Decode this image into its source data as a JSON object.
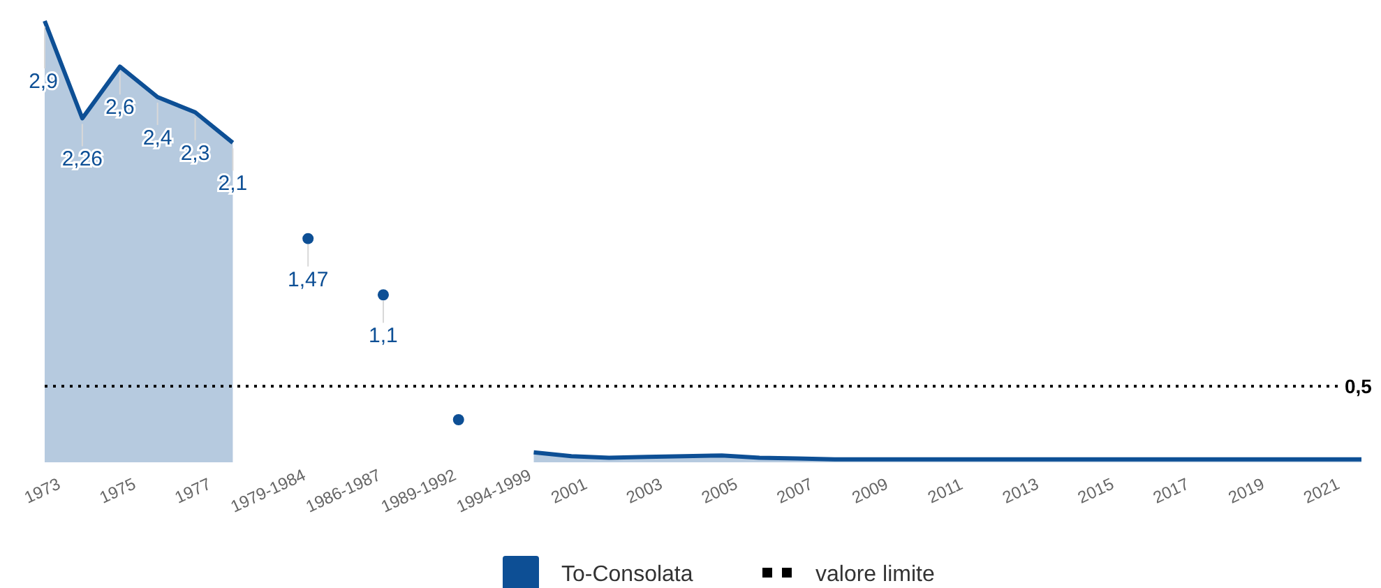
{
  "chart_data": {
    "type": "area",
    "categories": [
      "1973",
      null,
      "1975",
      null,
      "1977",
      null,
      "1979-1984",
      null,
      "1986-1987",
      null,
      "1989-1992",
      null,
      "1994-1999",
      null,
      "2001",
      null,
      "2003",
      null,
      "2005",
      null,
      "2007",
      null,
      "2009",
      null,
      "2011",
      null,
      "2013",
      null,
      "2015",
      null,
      "2017",
      null,
      "2019",
      null,
      "2021",
      null
    ],
    "series": [
      {
        "name": "To-Consolata",
        "color": "#0d4f95",
        "values": [
          2.9,
          2.26,
          2.6,
          2.4,
          2.3,
          2.1,
          null,
          null,
          null,
          null,
          null,
          null,
          null,
          0.065,
          0.04,
          0.03,
          0.035,
          0.04,
          0.045,
          0.03,
          0.025,
          0.02,
          0.02,
          0.02,
          0.02,
          0.02,
          0.02,
          0.02,
          0.02,
          0.02,
          0.02,
          0.02,
          0.02,
          0.02,
          0.02,
          0.02
        ],
        "value_labels": [
          "2,9",
          "2,26",
          "2,6",
          "2,4",
          "2,3",
          "2,1",
          null,
          null,
          null,
          null,
          null,
          null,
          null,
          null,
          null,
          null,
          null,
          null,
          null,
          null,
          null,
          null,
          null,
          null,
          null,
          null,
          null,
          null,
          null,
          null,
          null,
          null,
          null,
          null,
          null,
          null
        ]
      },
      {
        "type": "scatter",
        "color": "#0d4f95",
        "values": [
          null,
          null,
          null,
          null,
          null,
          null,
          null,
          1.47,
          null,
          1.1,
          null,
          0.28,
          null,
          null,
          null,
          null,
          null,
          null,
          null,
          null,
          null,
          null,
          null,
          null,
          null,
          null,
          null,
          null,
          null,
          null,
          null,
          null,
          null,
          null,
          null,
          null
        ],
        "value_labels": [
          null,
          null,
          null,
          null,
          null,
          null,
          null,
          "1,47",
          null,
          "1,1",
          null,
          null,
          null,
          null,
          null,
          null,
          null,
          null,
          null,
          null,
          null,
          null,
          null,
          null,
          null,
          null,
          null,
          null,
          null,
          null,
          null,
          null,
          null,
          null,
          null,
          null
        ]
      }
    ],
    "ref_lines": [
      {
        "axis": "y",
        "value": 0.5,
        "label": "valore limite",
        "color": "#000000",
        "line_style": "dotted"
      }
    ],
    "annotations": [
      "0,5"
    ],
    "legend": "bottom"
  }
}
